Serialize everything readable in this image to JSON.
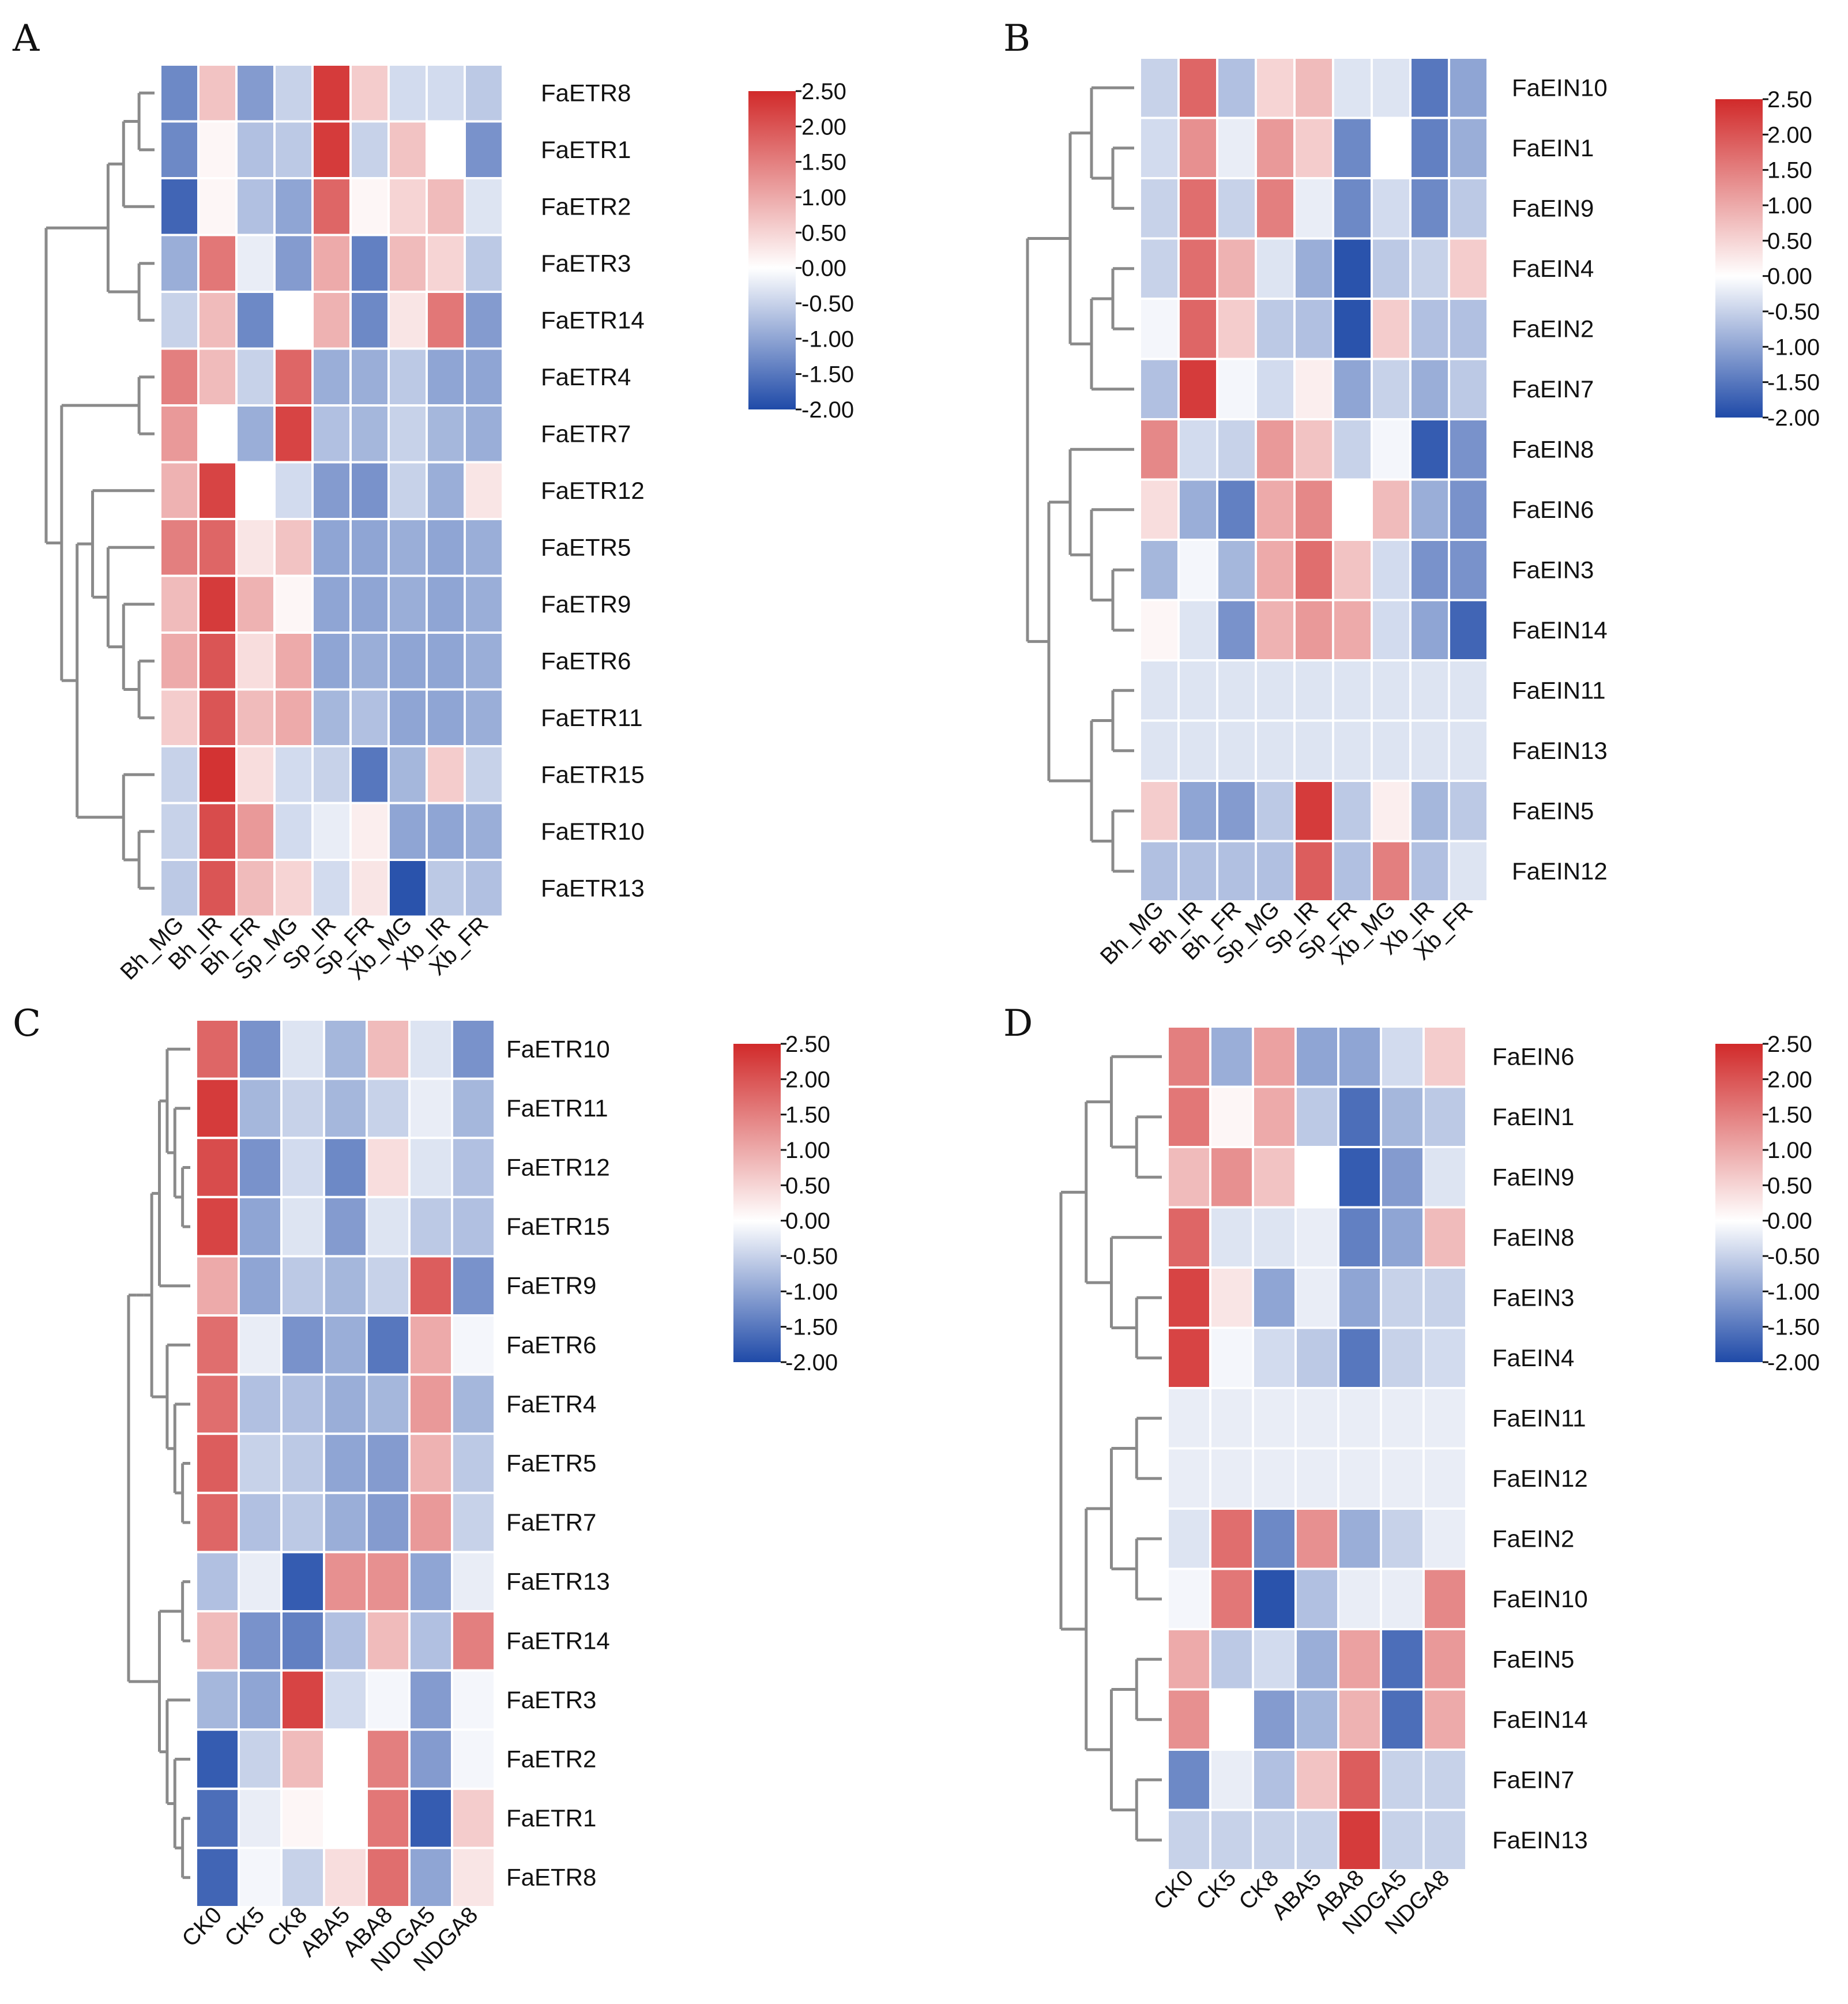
{
  "chart_data": [
    {
      "panel": "A",
      "type": "heatmap",
      "rows": [
        "FaETR8",
        "FaETR1",
        "FaETR2",
        "FaETR3",
        "FaETR14",
        "FaETR4",
        "FaETR7",
        "FaETR12",
        "FaETR5",
        "FaETR9",
        "FaETR6",
        "FaETR11",
        "FaETR15",
        "FaETR10",
        "FaETR13"
      ],
      "columns": [
        "Bh_MG",
        "Bh_IR",
        "Bh_FR",
        "Sp_MG",
        "Sp_IR",
        "Sp_FR",
        "Xb_MG",
        "Xb_IR",
        "Xb_FR"
      ],
      "values": [
        [
          -1.3,
          0.7,
          -1.1,
          -0.5,
          2.3,
          0.6,
          -0.4,
          -0.4,
          -0.6
        ],
        [
          -1.3,
          0.1,
          -0.7,
          -0.6,
          2.3,
          -0.5,
          0.7,
          0.0,
          -1.2
        ],
        [
          -1.7,
          0.1,
          -0.7,
          -1.0,
          1.8,
          0.1,
          0.5,
          0.8,
          -0.3
        ],
        [
          -0.9,
          1.6,
          -0.2,
          -1.1,
          1.0,
          -1.4,
          0.8,
          0.5,
          -0.6
        ],
        [
          -0.5,
          0.8,
          -1.3,
          0.0,
          0.9,
          -1.3,
          0.3,
          1.6,
          -1.1
        ],
        [
          1.5,
          0.8,
          -0.5,
          1.8,
          -0.9,
          -0.9,
          -0.6,
          -1.0,
          -1.0
        ],
        [
          1.2,
          0.0,
          -0.9,
          2.2,
          -0.7,
          -0.8,
          -0.5,
          -0.8,
          -0.9
        ],
        [
          0.9,
          2.2,
          0.0,
          -0.4,
          -1.1,
          -1.2,
          -0.5,
          -0.9,
          0.3
        ],
        [
          1.5,
          1.8,
          0.3,
          0.7,
          -1.0,
          -1.0,
          -0.9,
          -1.0,
          -0.9
        ],
        [
          0.8,
          2.3,
          0.9,
          0.1,
          -1.0,
          -1.0,
          -0.9,
          -1.0,
          -0.9
        ],
        [
          1.0,
          2.0,
          0.4,
          1.0,
          -1.0,
          -0.9,
          -1.0,
          -1.0,
          -0.9
        ],
        [
          0.6,
          2.0,
          0.8,
          1.0,
          -0.8,
          -0.7,
          -1.0,
          -1.0,
          -0.9
        ],
        [
          -0.5,
          2.4,
          0.4,
          -0.4,
          -0.5,
          -1.5,
          -0.8,
          0.6,
          -0.5
        ],
        [
          -0.5,
          2.1,
          1.2,
          -0.4,
          -0.2,
          0.2,
          -1.0,
          -1.0,
          -0.9
        ],
        [
          -0.6,
          2.0,
          0.8,
          0.5,
          -0.4,
          0.3,
          -1.9,
          -0.6,
          -0.7
        ]
      ],
      "colorbar": {
        "min": -2.0,
        "max": 2.5,
        "ticks": [
          "2.50",
          "2.00",
          "1.50",
          "1.00",
          "0.50",
          "0.00",
          "-0.50",
          "-1.00",
          "-1.50",
          "-2.00"
        ]
      }
    },
    {
      "panel": "B",
      "type": "heatmap",
      "rows": [
        "FaEIN10",
        "FaEIN1",
        "FaEIN9",
        "FaEIN4",
        "FaEIN2",
        "FaEIN7",
        "FaEIN8",
        "FaEIN6",
        "FaEIN3",
        "FaEIN14",
        "FaEIN11",
        "FaEIN13",
        "FaEIN5",
        "FaEIN12"
      ],
      "columns": [
        "Bh_MG",
        "Bh_IR",
        "Bh_FR",
        "Sp_MG",
        "Sp_IR",
        "Sp_FR",
        "Xb_MG",
        "Xb_IR",
        "Xb_FR"
      ],
      "values": [
        [
          -0.5,
          1.8,
          -0.7,
          0.5,
          0.8,
          -0.3,
          -0.3,
          -1.5,
          -1.0
        ],
        [
          -0.4,
          1.3,
          -0.2,
          1.2,
          0.6,
          -1.3,
          0.0,
          -1.4,
          -0.9
        ],
        [
          -0.5,
          1.7,
          -0.5,
          1.5,
          -0.2,
          -1.3,
          -0.4,
          -1.3,
          -0.6
        ],
        [
          -0.5,
          1.7,
          0.9,
          -0.3,
          -0.9,
          -1.9,
          -0.6,
          -0.5,
          0.6
        ],
        [
          -0.1,
          1.8,
          0.6,
          -0.6,
          -0.7,
          -1.9,
          0.6,
          -0.7,
          -0.7
        ],
        [
          -0.7,
          2.3,
          -0.1,
          -0.4,
          0.2,
          -1.0,
          -0.5,
          -0.9,
          -0.6
        ],
        [
          1.4,
          -0.4,
          -0.5,
          1.2,
          0.7,
          -0.5,
          -0.1,
          -1.8,
          -1.2
        ],
        [
          0.4,
          -0.9,
          -1.4,
          1.0,
          1.4,
          0.0,
          0.8,
          -0.9,
          -1.2
        ],
        [
          -0.8,
          -0.1,
          -0.8,
          1.0,
          1.7,
          0.7,
          -0.4,
          -1.2,
          -1.2
        ],
        [
          0.1,
          -0.3,
          -1.2,
          0.9,
          1.2,
          1.0,
          -0.4,
          -1.0,
          -1.7
        ],
        [
          -0.3,
          -0.3,
          -0.3,
          -0.3,
          -0.3,
          -0.3,
          -0.3,
          -0.3,
          -0.3
        ],
        [
          -0.3,
          -0.3,
          -0.3,
          -0.3,
          -0.3,
          -0.3,
          -0.3,
          -0.3,
          -0.3
        ],
        [
          0.6,
          -1.0,
          -1.1,
          -0.6,
          2.3,
          -0.6,
          0.2,
          -0.8,
          -0.6
        ],
        [
          -0.7,
          -0.7,
          -0.7,
          -0.7,
          1.9,
          -0.7,
          1.5,
          -0.7,
          -0.3
        ]
      ],
      "colorbar": {
        "min": -2.0,
        "max": 2.5,
        "ticks": [
          "2.50",
          "2.00",
          "1.50",
          "1.00",
          "0.50",
          "0.00",
          "-0.50",
          "-1.00",
          "-1.50",
          "-2.00"
        ]
      }
    },
    {
      "panel": "C",
      "type": "heatmap",
      "rows": [
        "FaETR10",
        "FaETR11",
        "FaETR12",
        "FaETR15",
        "FaETR9",
        "FaETR6",
        "FaETR4",
        "FaETR5",
        "FaETR7",
        "FaETR13",
        "FaETR14",
        "FaETR3",
        "FaETR2",
        "FaETR1",
        "FaETR8"
      ],
      "columns": [
        "CK0",
        "CK5",
        "CK8",
        "ABA5",
        "ABA8",
        "NDGA5",
        "NDGA8"
      ],
      "values": [
        [
          1.8,
          -1.2,
          -0.3,
          -0.8,
          0.8,
          -0.3,
          -1.2
        ],
        [
          2.3,
          -0.8,
          -0.5,
          -0.8,
          -0.5,
          -0.2,
          -0.8
        ],
        [
          2.1,
          -1.2,
          -0.4,
          -1.3,
          0.4,
          -0.3,
          -0.7
        ],
        [
          2.2,
          -1.0,
          -0.3,
          -1.1,
          -0.3,
          -0.6,
          -0.7
        ],
        [
          1.0,
          -1.0,
          -0.6,
          -0.8,
          -0.5,
          1.9,
          -1.2
        ],
        [
          1.7,
          -0.2,
          -1.2,
          -0.9,
          -1.5,
          1.0,
          -0.1
        ],
        [
          1.7,
          -0.7,
          -0.7,
          -0.9,
          -0.8,
          1.2,
          -0.8
        ],
        [
          1.9,
          -0.5,
          -0.6,
          -1.0,
          -1.1,
          0.9,
          -0.6
        ],
        [
          1.8,
          -0.7,
          -0.6,
          -0.9,
          -1.1,
          1.2,
          -0.5
        ],
        [
          -0.7,
          -0.2,
          -1.8,
          1.3,
          1.3,
          -1.0,
          -0.2
        ],
        [
          0.8,
          -1.2,
          -1.4,
          -0.7,
          0.8,
          -0.7,
          1.5
        ],
        [
          -0.8,
          -1.0,
          2.2,
          -0.4,
          -0.1,
          -1.1,
          -0.1
        ],
        [
          -1.8,
          -0.5,
          0.8,
          0.0,
          1.5,
          -1.1,
          -0.1
        ],
        [
          -1.6,
          -0.2,
          0.1,
          0.0,
          1.6,
          -1.8,
          0.6
        ],
        [
          -1.7,
          -0.1,
          -0.5,
          0.4,
          1.7,
          -1.0,
          0.3
        ]
      ],
      "colorbar": {
        "min": -2.0,
        "max": 2.5,
        "ticks": [
          "2.50",
          "2.00",
          "1.50",
          "1.00",
          "0.50",
          "0.00",
          "-0.50",
          "-1.00",
          "-1.50",
          "-2.00"
        ]
      }
    },
    {
      "panel": "D",
      "type": "heatmap",
      "rows": [
        "FaEIN6",
        "FaEIN1",
        "FaEIN9",
        "FaEIN8",
        "FaEIN3",
        "FaEIN4",
        "FaEIN11",
        "FaEIN12",
        "FaEIN2",
        "FaEIN10",
        "FaEIN5",
        "FaEIN14",
        "FaEIN7",
        "FaEIN13"
      ],
      "columns": [
        "CK0",
        "CK5",
        "CK8",
        "ABA5",
        "ABA8",
        "NDGA5",
        "NDGA8"
      ],
      "values": [
        [
          1.5,
          -0.9,
          1.1,
          -1.0,
          -1.0,
          -0.4,
          0.6
        ],
        [
          1.6,
          0.1,
          1.0,
          -0.6,
          -1.6,
          -0.8,
          -0.6
        ],
        [
          0.8,
          1.3,
          0.7,
          0.0,
          -1.8,
          -1.1,
          -0.3
        ],
        [
          1.8,
          -0.3,
          -0.3,
          -0.2,
          -1.4,
          -1.0,
          0.8
        ],
        [
          2.2,
          0.3,
          -1.0,
          -0.2,
          -1.0,
          -0.5,
          -0.5
        ],
        [
          2.2,
          -0.1,
          -0.4,
          -0.6,
          -1.5,
          -0.5,
          -0.4
        ],
        [
          -0.2,
          -0.2,
          -0.2,
          -0.2,
          -0.2,
          -0.2,
          -0.2
        ],
        [
          -0.2,
          -0.2,
          -0.2,
          -0.2,
          -0.2,
          -0.2,
          -0.2
        ],
        [
          -0.3,
          1.7,
          -1.3,
          1.3,
          -0.9,
          -0.5,
          -0.2
        ],
        [
          -0.1,
          1.6,
          -1.9,
          -0.7,
          -0.2,
          -0.2,
          1.4
        ],
        [
          1.0,
          -0.6,
          -0.4,
          -0.9,
          1.1,
          -1.6,
          1.2
        ],
        [
          1.3,
          0.0,
          -1.1,
          -0.8,
          0.9,
          -1.6,
          1.0
        ],
        [
          -1.3,
          -0.2,
          -0.7,
          0.7,
          1.9,
          -0.5,
          -0.5
        ],
        [
          -0.5,
          -0.5,
          -0.5,
          -0.5,
          2.3,
          -0.5,
          -0.5
        ]
      ],
      "colorbar": {
        "min": -2.0,
        "max": 2.5,
        "ticks": [
          "2.50",
          "2.00",
          "1.50",
          "1.00",
          "0.50",
          "0.00",
          "-0.50",
          "-1.00",
          "-1.50",
          "-2.00"
        ]
      }
    }
  ],
  "colors": {
    "high": "#d12a2a",
    "mid": "#ffffff",
    "low": "#1f4aa8",
    "dendrogram": "#8a8a8a"
  }
}
